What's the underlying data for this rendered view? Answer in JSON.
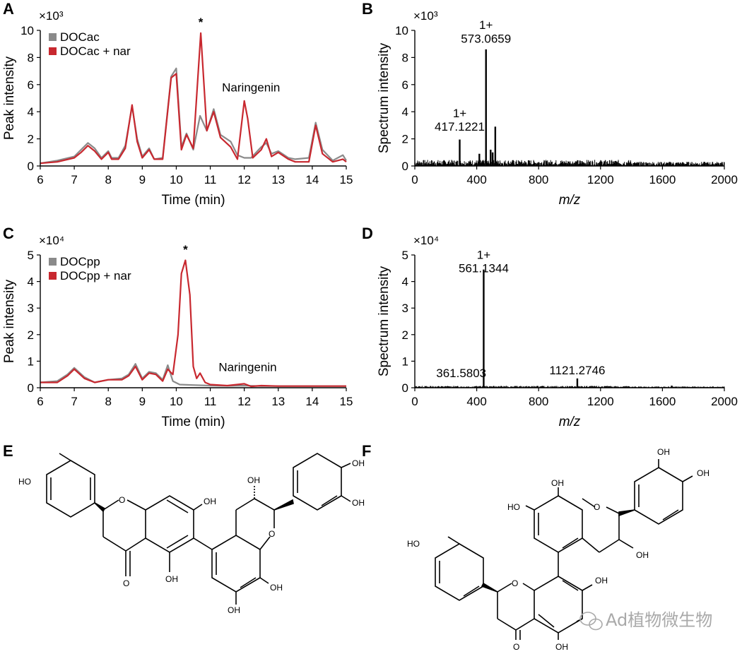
{
  "panel_labels": {
    "A": "A",
    "B": "B",
    "C": "C",
    "D": "D",
    "E": "E",
    "F": "F"
  },
  "watermark": "Ad植物微生物",
  "colors": {
    "gray": "#8a8a8a",
    "red": "#c8282f",
    "black": "#000000"
  },
  "chart_data": [
    {
      "id": "A",
      "type": "line",
      "xlabel": "Time (min)",
      "ylabel": "Peak intensity",
      "exponent": "×10³",
      "xlim": [
        6,
        15
      ],
      "ylim": [
        0,
        10
      ],
      "xticks": [
        6,
        7,
        8,
        9,
        10,
        11,
        12,
        13,
        14,
        15
      ],
      "yticks": [
        0,
        2,
        4,
        6,
        8,
        10
      ],
      "legend": "top-left",
      "annotations": [
        {
          "text": "*",
          "x": 10.72,
          "y": 10.3
        },
        {
          "text": "Naringenin",
          "x": 12.2,
          "y": 5.5
        }
      ],
      "series": [
        {
          "name": "DOCac",
          "color": "#8a8a8a",
          "x": [
            6,
            6.5,
            7,
            7.2,
            7.4,
            7.6,
            7.8,
            8,
            8.1,
            8.3,
            8.5,
            8.7,
            8.85,
            9,
            9.2,
            9.35,
            9.6,
            9.85,
            10,
            10.15,
            10.3,
            10.5,
            10.7,
            10.9,
            11.1,
            11.3,
            11.6,
            11.8,
            12,
            12.2,
            12.5,
            12.65,
            12.8,
            13,
            13.3,
            13.5,
            13.9,
            14.1,
            14.3,
            14.6,
            14.9,
            15
          ],
          "y": [
            0.2,
            0.4,
            0.7,
            1.2,
            1.7,
            1.3,
            0.6,
            1.1,
            0.6,
            0.6,
            1.5,
            4.4,
            2.0,
            0.7,
            1.3,
            0.5,
            0.6,
            6.6,
            7.2,
            1.4,
            2.4,
            1.2,
            3.7,
            2.6,
            4.2,
            2.3,
            1.8,
            0.8,
            0.6,
            0.6,
            1.4,
            1.7,
            0.9,
            1.1,
            0.6,
            0.5,
            0.6,
            3.2,
            1.2,
            0.4,
            0.8,
            0.4
          ]
        },
        {
          "name": "DOCac + nar",
          "color": "#c8282f",
          "x": [
            6,
            6.5,
            7,
            7.2,
            7.4,
            7.6,
            7.8,
            8,
            8.1,
            8.3,
            8.5,
            8.7,
            8.85,
            9,
            9.2,
            9.35,
            9.6,
            9.85,
            10,
            10.15,
            10.3,
            10.5,
            10.72,
            10.9,
            11.1,
            11.3,
            11.6,
            11.8,
            12,
            12.1,
            12.25,
            12.5,
            12.65,
            12.8,
            13,
            13.3,
            13.5,
            13.9,
            14.1,
            14.3,
            14.6,
            14.9,
            15
          ],
          "y": [
            0.2,
            0.3,
            0.6,
            1.0,
            1.5,
            1.1,
            0.5,
            1.0,
            0.5,
            0.5,
            1.3,
            4.5,
            1.8,
            0.6,
            1.2,
            0.5,
            0.5,
            6.5,
            6.8,
            1.2,
            2.3,
            1.3,
            9.8,
            2.6,
            4.0,
            2.1,
            1.4,
            0.5,
            4.8,
            3.5,
            0.6,
            1.2,
            2.0,
            0.7,
            1.0,
            0.5,
            0.3,
            0.3,
            3.0,
            0.9,
            0.3,
            0.5,
            0.3
          ]
        }
      ]
    },
    {
      "id": "B",
      "type": "bar",
      "xlabel": "m/z",
      "ylabel": "Spectrum intensity",
      "exponent": "×10³",
      "xlim": [
        0,
        2000
      ],
      "ylim": [
        0,
        10
      ],
      "xticks": [
        0,
        400,
        800,
        1200,
        1600,
        2000
      ],
      "yticks": [
        0,
        2,
        4,
        6,
        8,
        10
      ],
      "peaks": {
        "x": [
          290,
          417,
          460,
          490,
          503,
          520
        ],
        "y": [
          1.95,
          0.9,
          8.6,
          1.2,
          1.0,
          2.9
        ]
      },
      "annotations": [
        {
          "text": "1+",
          "x": 460,
          "y": 10.1
        },
        {
          "text": "573.0659",
          "x": 460,
          "y": 9.1
        },
        {
          "text": "1+",
          "x": 290,
          "y": 3.6
        },
        {
          "text": "417.1221",
          "x": 290,
          "y": 2.6
        }
      ]
    },
    {
      "id": "C",
      "type": "line",
      "xlabel": "Time (min)",
      "ylabel": "Peak intensity",
      "exponent": "×10⁴",
      "xlim": [
        6,
        15
      ],
      "ylim": [
        0,
        5
      ],
      "xticks": [
        6,
        7,
        8,
        9,
        10,
        11,
        12,
        13,
        14,
        15
      ],
      "yticks": [
        0,
        1,
        2,
        3,
        4,
        5
      ],
      "legend": "top-left",
      "annotations": [
        {
          "text": "*",
          "x": 10.27,
          "y": 5.05
        },
        {
          "text": "Naringenin",
          "x": 12.1,
          "y": 0.62
        }
      ],
      "series": [
        {
          "name": "DOCpp",
          "color": "#8a8a8a",
          "x": [
            6,
            6.5,
            6.8,
            7,
            7.3,
            7.6,
            8,
            8.4,
            8.6,
            8.8,
            9,
            9.2,
            9.4,
            9.6,
            9.75,
            9.9,
            10.1,
            10.5,
            11,
            11.5,
            12,
            12.5,
            13,
            14,
            15
          ],
          "y": [
            0.2,
            0.25,
            0.5,
            0.75,
            0.4,
            0.2,
            0.3,
            0.35,
            0.5,
            0.9,
            0.35,
            0.6,
            0.55,
            0.3,
            0.85,
            0.25,
            0.12,
            0.1,
            0.08,
            0.07,
            0.08,
            0.06,
            0.06,
            0.06,
            0.06
          ]
        },
        {
          "name": "DOCpp + nar",
          "color": "#c8282f",
          "x": [
            6,
            6.5,
            6.8,
            7,
            7.3,
            7.6,
            8,
            8.4,
            8.6,
            8.8,
            9,
            9.2,
            9.4,
            9.6,
            9.75,
            9.9,
            10.05,
            10.15,
            10.27,
            10.4,
            10.5,
            10.6,
            10.7,
            10.85,
            11,
            11.5,
            12,
            12.2,
            12.5,
            13,
            14,
            15
          ],
          "y": [
            0.2,
            0.2,
            0.45,
            0.7,
            0.35,
            0.2,
            0.3,
            0.3,
            0.45,
            0.8,
            0.3,
            0.55,
            0.5,
            0.25,
            0.7,
            0.5,
            2.0,
            4.3,
            4.8,
            3.5,
            0.8,
            0.35,
            0.55,
            0.2,
            0.12,
            0.08,
            0.15,
            0.05,
            0.08,
            0.06,
            0.06,
            0.06
          ]
        }
      ]
    },
    {
      "id": "D",
      "type": "bar",
      "xlabel": "m/z",
      "ylabel": "Spectrum intensity",
      "exponent": "×10⁴",
      "xlim": [
        0,
        2000
      ],
      "ylim": [
        0,
        5
      ],
      "xticks": [
        0,
        400,
        800,
        1200,
        1600,
        2000
      ],
      "yticks": [
        0,
        1,
        2,
        3,
        4,
        5
      ],
      "peaks": {
        "x": [
          445,
          1050,
          1660
        ],
        "y": [
          4.45,
          0.35,
          0.08
        ]
      },
      "annotations": [
        {
          "text": "1+",
          "x": 445,
          "y": 4.85
        },
        {
          "text": "561.1344",
          "x": 445,
          "y": 4.35
        },
        {
          "text": "361.5803",
          "x": 300,
          "y": 0.4
        },
        {
          "text": "1121.2746",
          "x": 1050,
          "y": 0.5
        }
      ]
    }
  ],
  "structure_E": {
    "labels": [
      "HO",
      "O",
      "O",
      "O",
      "OH",
      "OH",
      "OH",
      "OH",
      "OH",
      "OH",
      "OH"
    ]
  },
  "structure_F": {
    "labels": [
      "OH",
      "OH",
      "OH",
      "HO",
      "O",
      "OH",
      "HO",
      "O",
      "OH",
      "O",
      "OH"
    ]
  }
}
